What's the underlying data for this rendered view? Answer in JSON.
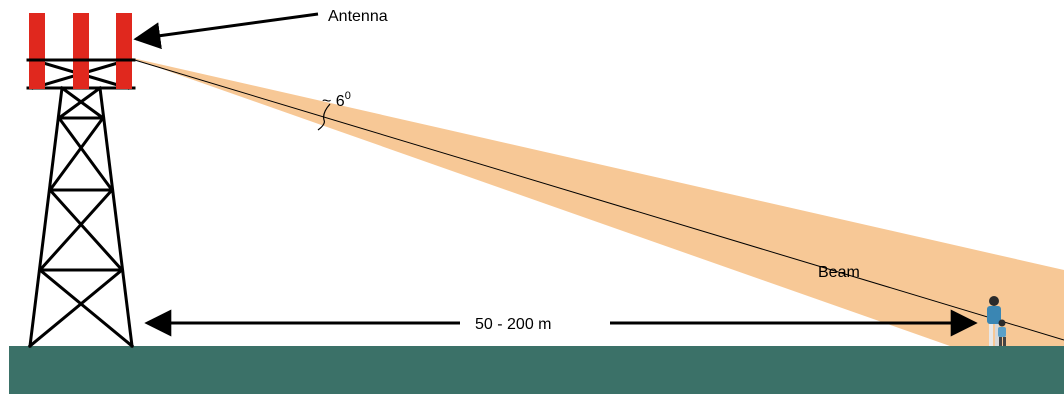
{
  "labels": {
    "antenna": "Antenna",
    "beam": "Beam",
    "angle_prefix": "~ 6",
    "angle_superscript": "0",
    "distance": "50 - 200 m"
  },
  "colors": {
    "ground": "#3b7168",
    "beam": "#f7c896",
    "antenna": "#e0281e",
    "tower": "#000000",
    "arrow": "#000000"
  },
  "icons": {
    "tower": "lattice-tower-icon",
    "antenna": "antenna-panels-icon",
    "people": "people-icon"
  }
}
